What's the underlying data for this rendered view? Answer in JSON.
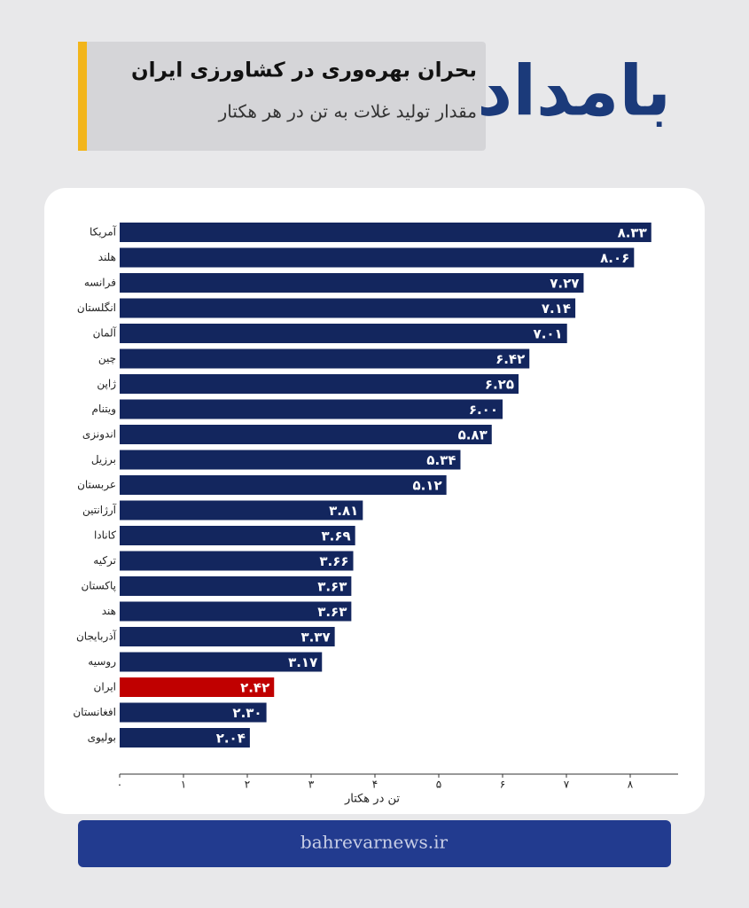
{
  "brand": "بامداد",
  "footer": "bahrevarnews.ir",
  "chart_data": {
    "type": "bar",
    "horizontal": true,
    "title": "بحران بهره‌وری در کشاورزی ایران",
    "subtitle": "مقدار تولید غلات به تن در هر هکتار",
    "x_label": "تن در هکتار",
    "categories": [
      "آمریکا",
      "هلند",
      "فرانسه",
      "انگلستان",
      "آلمان",
      "چین",
      "ژاپن",
      "ویتنام",
      "اندونزی",
      "برزیل",
      "عربستان",
      "آرژانتین",
      "کانادا",
      "ترکیه",
      "پاکستان",
      "هند",
      "آذربایجان",
      "روسیه",
      "ایران",
      "افغانستان",
      "بولیوی"
    ],
    "values": [
      8.33,
      8.06,
      7.27,
      7.14,
      7.01,
      6.42,
      6.25,
      6.0,
      5.83,
      5.34,
      5.12,
      3.81,
      3.69,
      3.66,
      3.63,
      3.63,
      3.37,
      3.17,
      2.42,
      2.3,
      2.04
    ],
    "value_labels": [
      "۸.۳۳",
      "۸.۰۶",
      "۷.۲۷",
      "۷.۱۴",
      "۷.۰۱",
      "۶.۴۲",
      "۶.۲۵",
      "۶.۰۰",
      "۵.۸۳",
      "۵.۳۴",
      "۵.۱۲",
      "۳.۸۱",
      "۳.۶۹",
      "۳.۶۶",
      "۳.۶۳",
      "۳.۶۳",
      "۳.۳۷",
      "۳.۱۷",
      "۲.۴۲",
      "۲.۳۰",
      "۲.۰۴"
    ],
    "colors": [
      "#13265e",
      "#13265e",
      "#13265e",
      "#13265e",
      "#13265e",
      "#13265e",
      "#13265e",
      "#13265e",
      "#13265e",
      "#13265e",
      "#13265e",
      "#13265e",
      "#13265e",
      "#13265e",
      "#13265e",
      "#13265e",
      "#13265e",
      "#13265e",
      "#c00000",
      "#13265e",
      "#13265e"
    ],
    "xlim": [
      0,
      8.75
    ],
    "xticks": [
      {
        "value": 0,
        "label": "۰"
      },
      {
        "value": 1,
        "label": "۱"
      },
      {
        "value": 2,
        "label": "۲"
      },
      {
        "value": 3,
        "label": "۳"
      },
      {
        "value": 4,
        "label": "۴"
      },
      {
        "value": 5,
        "label": "۵"
      },
      {
        "value": 6,
        "label": "۶"
      },
      {
        "value": 7,
        "label": "۷"
      },
      {
        "value": 8,
        "label": "۸"
      }
    ],
    "grid": false
  }
}
